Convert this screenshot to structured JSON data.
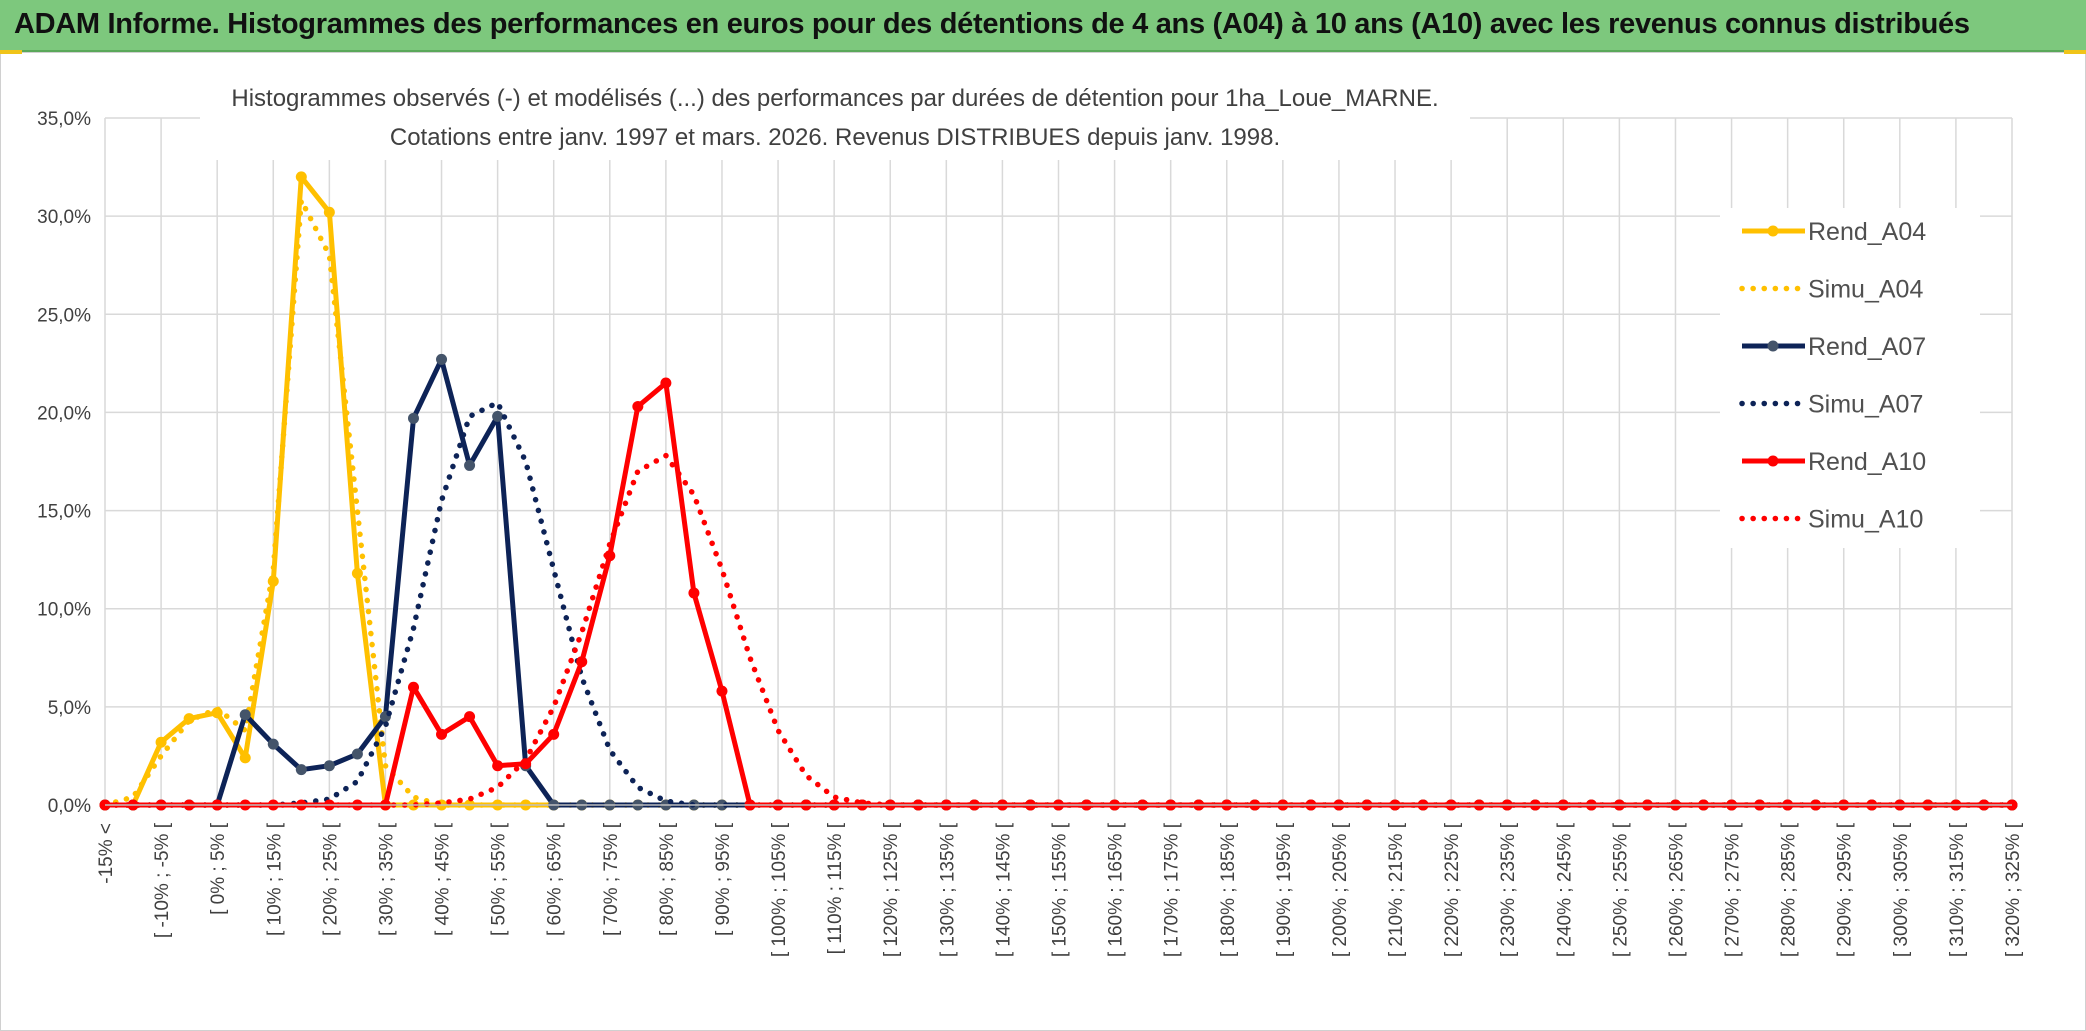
{
  "banner": {
    "title": "ADAM Informe. Histogrammes des performances en euros pour des détentions de 4 ans (A04) à 10 ans (A10) avec les revenus connus distribués",
    "background": "#7dc87d"
  },
  "chart_data": {
    "type": "line",
    "title_line1": "Histogrammes observés (-) et modélisés (...) des performances par durées de détention pour 1ha_Loue_MARNE.",
    "title_line2": "Cotations entre janv. 1997 et mars. 2026. Revenus DISTRIBUES depuis janv. 1998.",
    "ylim": [
      0,
      35
    ],
    "y_ticks": [
      "0,0%",
      "5,0%",
      "10,0%",
      "15,0%",
      "20,0%",
      "25,0%",
      "30,0%",
      "35,0%"
    ],
    "grid": true,
    "legend_position": "right",
    "x_labels": [
      "-15% <",
      "[ -10% ; -5% [",
      "[ 0% ; 5% [",
      "[ 10% ; 15% [",
      "[ 20% ; 25% [",
      "[ 30% ; 35% [",
      "[ 40% ; 45% [",
      "[ 50% ; 55% [",
      "[ 60% ; 65% [",
      "[ 70% ; 75% [",
      "[ 80% ; 85% [",
      "[ 90% ; 95% [",
      "[ 100% ; 105% [",
      "[ 110% ; 115% [",
      "[ 120% ; 125% [",
      "[ 130% ; 135% [",
      "[ 140% ; 145% [",
      "[ 150% ; 155% [",
      "[ 160% ; 165% [",
      "[ 170% ; 175% [",
      "[ 180% ; 185% [",
      "[ 190% ; 195% [",
      "[ 200% ; 205% [",
      "[ 210% ; 215% [",
      "[ 220% ; 225% [",
      "[ 230% ; 235% [",
      "[ 240% ; 245% [",
      "[ 250% ; 255% [",
      "[ 260% ; 265% [",
      "[ 270% ; 275% [",
      "[ 280% ; 285% [",
      "[ 290% ; 295% [",
      "[ 300% ; 305% [",
      "[ 310% ; 315% [",
      "[ 320% ; 325% ["
    ],
    "series": [
      {
        "name": "Rend_A04",
        "color": "#ffc000",
        "style": "solid",
        "markers": true,
        "values": [
          0,
          0,
          3.2,
          4.4,
          4.7,
          2.4,
          11.4,
          32.0,
          30.2,
          11.8,
          0,
          0,
          0,
          0,
          0,
          0
        ]
      },
      {
        "name": "Simu_A04",
        "color": "#ffc000",
        "style": "dotted",
        "markers": false,
        "values": [
          0,
          0.4,
          2.5,
          4.3,
          4.9,
          3.8,
          12.0,
          30.8,
          28.0,
          15.0,
          2.0,
          0.4,
          0,
          0,
          0,
          0
        ]
      },
      {
        "name": "Rend_A07",
        "color": "#0d2357",
        "style": "solid",
        "markers": true,
        "values": [
          0,
          0,
          0,
          0,
          0,
          4.6,
          3.1,
          1.8,
          2.0,
          2.6,
          4.5,
          19.7,
          22.7,
          17.3,
          19.8,
          2.0,
          0,
          0,
          0,
          0,
          0,
          0,
          0
        ]
      },
      {
        "name": "Simu_A07",
        "color": "#0d2357",
        "style": "dotted",
        "markers": false,
        "values": [
          0,
          0,
          0,
          0,
          0,
          0,
          0,
          0.1,
          0.3,
          1.2,
          4.0,
          9.0,
          15.5,
          19.8,
          20.5,
          17.5,
          12.0,
          6.5,
          2.8,
          0.9,
          0.2,
          0,
          0
        ]
      },
      {
        "name": "Rend_A10",
        "color": "#ff0000",
        "style": "solid",
        "markers": true,
        "values": [
          0,
          0,
          0,
          0,
          0,
          0,
          0,
          0,
          0,
          0,
          0,
          6.0,
          3.6,
          4.5,
          2.0,
          2.1,
          3.6,
          7.3,
          12.7,
          20.3,
          21.5,
          10.8,
          5.8,
          0
        ]
      },
      {
        "name": "Simu_A10",
        "color": "#ff0000",
        "style": "dotted",
        "markers": false,
        "values": [
          0,
          0,
          0,
          0,
          0,
          0,
          0,
          0,
          0,
          0,
          0,
          0,
          0.1,
          0.3,
          0.9,
          2.3,
          5.0,
          8.8,
          13.3,
          17.0,
          17.8,
          15.8,
          12.0,
          7.5,
          3.8,
          1.5,
          0.4,
          0.1,
          0
        ]
      }
    ]
  }
}
